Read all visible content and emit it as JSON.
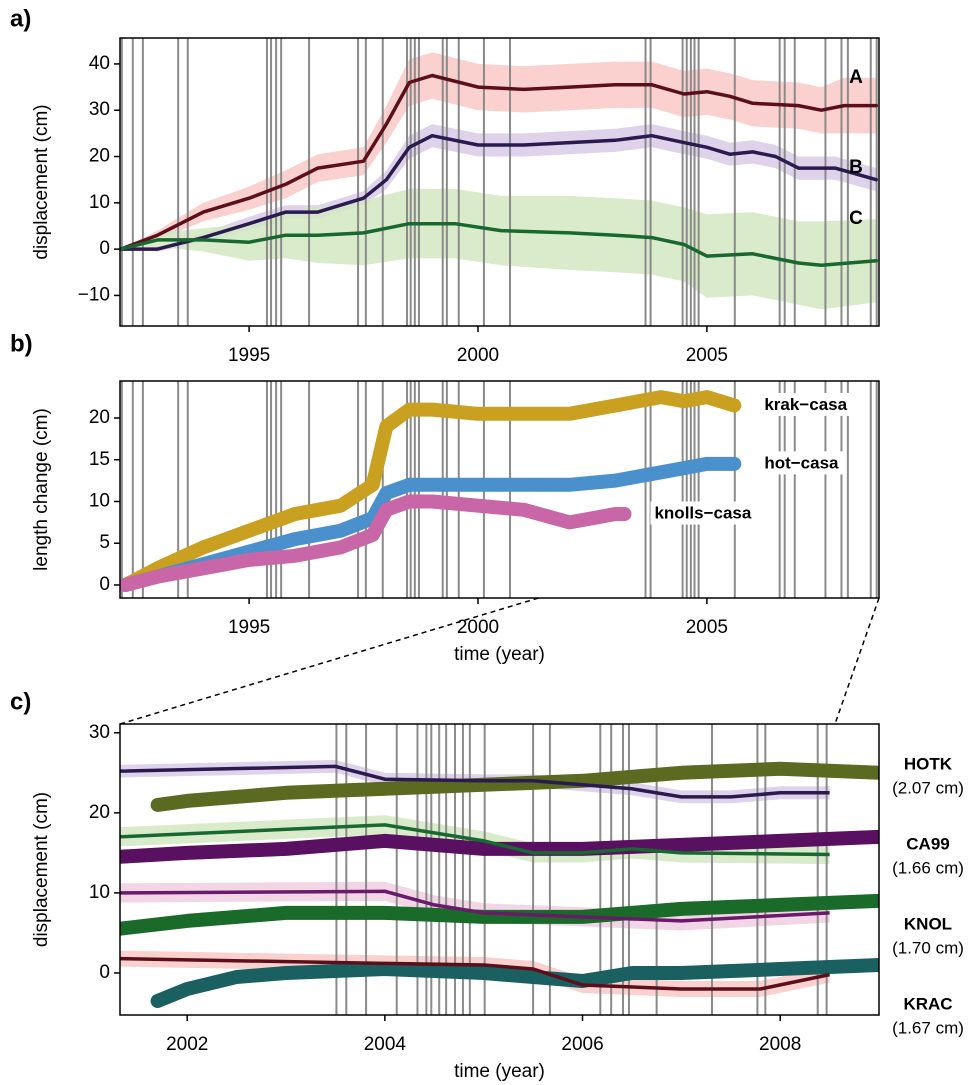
{
  "chart_data": [
    {
      "type": "line",
      "panel": "a)",
      "ylabel": "displacement (cm)",
      "xlim": [
        1992.18,
        2008.76
      ],
      "ylim": [
        -16.6,
        45.6
      ],
      "xticks": [
        1995,
        2000,
        2005
      ],
      "yticks": [
        {
          "value": -10,
          "label": "−10"
        },
        0,
        10,
        20,
        30,
        40
      ],
      "vlines": [
        1992.22,
        1992.46,
        1992.68,
        1993.45,
        1993.66,
        1995.39,
        1995.48,
        1995.59,
        1995.7,
        1996.31,
        1997.38,
        1997.55,
        1997.92,
        1998.45,
        1998.53,
        1998.62,
        1998.71,
        1999.23,
        1999.32,
        1999.58,
        2000.13,
        2000.7,
        2003.66,
        2003.77,
        2004.47,
        2004.56,
        2004.65,
        2004.73,
        2004.82,
        2005.61,
        2006.59,
        2006.7,
        2006.92,
        2007.59,
        2007.94,
        2008.08,
        2008.58,
        2008.71
      ],
      "series": [
        {
          "name": "A",
          "color": "#5c0f1a",
          "band_color": "#f9c9c5",
          "x": [
            1992.2,
            1993,
            1994,
            1995,
            1995.8,
            1996.5,
            1997.5,
            1998,
            1998.5,
            1999,
            2000,
            2001,
            2002,
            2003,
            2003.8,
            2004.5,
            2005,
            2005.5,
            2006,
            2007,
            2007.5,
            2008,
            2008.7
          ],
          "values": [
            0,
            3,
            8,
            11,
            14,
            17.5,
            19,
            27,
            36,
            37.5,
            35,
            34.5,
            35,
            35.5,
            35.5,
            33.5,
            34,
            33,
            31.5,
            31,
            30,
            31,
            31
          ],
          "errors": [
            0,
            1,
            2,
            2.5,
            3,
            3,
            3,
            4,
            5,
            5,
            5,
            5,
            5,
            5,
            5,
            5,
            5,
            5,
            5,
            5,
            5,
            6,
            6
          ]
        },
        {
          "name": "B",
          "color": "#2b1a4f",
          "band_color": "#d8cbe6",
          "x": [
            1992.2,
            1993,
            1994,
            1995,
            1995.8,
            1996.5,
            1997.5,
            1998,
            1998.5,
            1999,
            2000,
            2001,
            2002,
            2003,
            2003.8,
            2004.5,
            2005,
            2005.5,
            2006,
            2006.5,
            2007,
            2007.8,
            2008.7
          ],
          "values": [
            0,
            0,
            2.5,
            5.5,
            8,
            8,
            11,
            15,
            22,
            24.5,
            22.5,
            22.5,
            23,
            23.5,
            24.5,
            23,
            22,
            20.5,
            21,
            20,
            17.5,
            17.5,
            15
          ],
          "errors": [
            0,
            0.5,
            1,
            1.5,
            1.5,
            1.5,
            1.5,
            2,
            2.5,
            2.5,
            2.5,
            2.5,
            2.5,
            2.5,
            2.5,
            2.5,
            2.5,
            2.5,
            2.5,
            2.5,
            2.5,
            2.5,
            2.5
          ]
        },
        {
          "name": "C",
          "color": "#17692f",
          "band_color": "#d3e8c3",
          "x": [
            1992.2,
            1993,
            1994,
            1995,
            1995.8,
            1996.5,
            1997.5,
            1998.5,
            1999.5,
            2000.5,
            2002,
            2003,
            2003.8,
            2004.5,
            2005,
            2006,
            2007,
            2007.5,
            2008.7
          ],
          "values": [
            0,
            2,
            2,
            1.5,
            3,
            3,
            3.5,
            5.5,
            5.5,
            4,
            3.5,
            3,
            2.5,
            1,
            -1.5,
            -1,
            -3,
            -3.5,
            -2.5
          ],
          "errors": [
            0,
            1.5,
            2.5,
            4,
            5,
            6,
            7,
            7.5,
            7.5,
            7.5,
            8,
            8,
            8,
            8,
            9,
            9,
            9,
            9.5,
            9
          ]
        }
      ]
    },
    {
      "type": "dots",
      "panel": "b)",
      "ylabel": "length change (cm)",
      "xlabel": "time (year)",
      "xlim": [
        1992.18,
        2008.76
      ],
      "ylim": [
        -1.56,
        24.43
      ],
      "xticks": [
        1995,
        2000,
        2005
      ],
      "yticks": [
        0,
        5,
        10,
        15,
        20
      ],
      "vlines": [
        1992.22,
        1992.46,
        1992.68,
        1993.45,
        1993.66,
        1995.39,
        1995.48,
        1995.59,
        1995.7,
        1996.31,
        1997.38,
        1997.55,
        1997.92,
        1998.45,
        1998.53,
        1998.62,
        1998.71,
        1999.23,
        1999.32,
        1999.58,
        2000.13,
        2000.7,
        2003.66,
        2003.77,
        2004.47,
        2004.56,
        2004.65,
        2004.73,
        2004.82,
        2005.61,
        2006.59,
        2006.7,
        2006.92,
        2007.59,
        2007.94,
        2008.08,
        2008.58,
        2008.71
      ],
      "series": [
        {
          "name": "krak−casa",
          "color": "#c9a020",
          "x": [
            1992.3,
            1993,
            1994,
            1995,
            1996,
            1997,
            1997.7,
            1998,
            1998.5,
            1999,
            2000,
            2001,
            2002,
            2003,
            2003.5,
            2004,
            2004.5,
            2005,
            2005.6
          ],
          "values": [
            0,
            2,
            4.5,
            6.5,
            8.5,
            9.5,
            12,
            19,
            21,
            21,
            20.5,
            20.5,
            20.5,
            21.5,
            22,
            22.5,
            22,
            22.5,
            21.5
          ]
        },
        {
          "name": "hot−casa",
          "color": "#4a90cc",
          "x": [
            1992.3,
            1993,
            1994,
            1995,
            1996,
            1997,
            1997.7,
            1998,
            1998.5,
            1999,
            2000,
            2001,
            2002,
            2003,
            2004,
            2005,
            2005.6
          ],
          "values": [
            0,
            1,
            2.5,
            4,
            5.5,
            6.5,
            8,
            11,
            12,
            12,
            12,
            12,
            12,
            12.5,
            13.5,
            14.5,
            14.5
          ]
        },
        {
          "name": "knolls−casa",
          "color": "#c866a8",
          "x": [
            1992.3,
            1993,
            1994,
            1995,
            1996,
            1997,
            1997.7,
            1998,
            1998.5,
            1999,
            2000,
            2001,
            2002,
            2002.5,
            2003,
            2003.2
          ],
          "values": [
            0,
            1,
            2,
            3,
            3.5,
            4.5,
            6,
            9,
            10,
            10,
            9.5,
            9,
            7.5,
            8,
            8.5,
            8.5
          ]
        }
      ]
    },
    {
      "type": "dots",
      "panel": "c)",
      "ylabel": "displacement (cm)",
      "xlabel": "time (year)",
      "xlim": [
        2001.32,
        2009.0
      ],
      "ylim": [
        -5.25,
        31.1
      ],
      "xticks": [
        2002,
        2004,
        2006,
        2008
      ],
      "yticks": [
        0,
        10,
        20,
        30
      ],
      "vlines": [
        2003.51,
        2003.61,
        2003.81,
        2004.12,
        2004.33,
        2004.42,
        2004.47,
        2004.55,
        2004.62,
        2004.71,
        2004.79,
        2004.86,
        2005.01,
        2005.5,
        2005.67,
        2006.18,
        2006.29,
        2006.41,
        2006.47,
        2006.75,
        2007.31,
        2007.77,
        2007.85,
        2008.38,
        2008.47
      ],
      "series": [
        {
          "name": "HOTK",
          "note": "(2.07 cm)",
          "color": "#5a6a20",
          "x": [
            2001.7,
            2002,
            2003,
            2004,
            2005,
            2006,
            2007,
            2008,
            2009
          ],
          "values": [
            21,
            21.5,
            22.5,
            23,
            23.5,
            24,
            25,
            25.5,
            25
          ]
        },
        {
          "name": "CA99",
          "note": "(1.66 cm)",
          "color": "#5a1060",
          "x": [
            2001.3,
            2002,
            2003,
            2004,
            2005,
            2006,
            2007,
            2008,
            2009
          ],
          "values": [
            14.5,
            15,
            15.5,
            16.5,
            15.5,
            15.5,
            16,
            16.5,
            17
          ]
        },
        {
          "name": "KNOL",
          "note": "(1.70 cm)",
          "color": "#1a6a2a",
          "x": [
            2001.3,
            2002,
            2003,
            2004,
            2005,
            2006,
            2007,
            2008,
            2009
          ],
          "values": [
            5.5,
            6.5,
            7.5,
            7.5,
            7,
            7,
            8,
            8.5,
            9
          ]
        },
        {
          "name": "KRAC",
          "note": "(1.67 cm)",
          "color": "#1a6060",
          "x": [
            2001.7,
            2002,
            2002.5,
            2003,
            2004,
            2005,
            2006,
            2006.5,
            2007,
            2008,
            2009
          ],
          "values": [
            -3.5,
            -2,
            -0.5,
            0,
            0.5,
            0,
            -1,
            0,
            0,
            0.5,
            1
          ]
        }
      ],
      "models": [
        {
          "color": "#2b1a4f",
          "band_color": "#d8cbe6",
          "x": [
            2001.3,
            2003.5,
            2004,
            2005,
            2005.5,
            2006.5,
            2007,
            2007.5,
            2008,
            2008.5
          ],
          "values": [
            25.2,
            25.8,
            24.2,
            24,
            24,
            23,
            22,
            22,
            22.5,
            22.5
          ],
          "errors": [
            0.8,
            0.8,
            0.8,
            0.8,
            0.8,
            0.8,
            0.8,
            0.8,
            0.8,
            0.8
          ]
        },
        {
          "color": "#17692f",
          "band_color": "#d3e8c3",
          "x": [
            2001.3,
            2004,
            2005,
            2005.5,
            2006,
            2006.5,
            2007,
            2008.5
          ],
          "values": [
            17,
            18.5,
            16.5,
            15,
            15,
            15.5,
            15,
            14.8
          ],
          "errors": [
            1.2,
            1.2,
            1.2,
            1.2,
            1.2,
            1.2,
            1.2,
            1.2
          ]
        },
        {
          "color": "#6a1a6a",
          "band_color": "#f0cfe0",
          "x": [
            2001.3,
            2004,
            2004.5,
            2005,
            2006,
            2007,
            2008.5
          ],
          "values": [
            10,
            10.2,
            8.5,
            7.5,
            7,
            6.5,
            7.5
          ],
          "errors": [
            1.2,
            1.2,
            1.2,
            1.2,
            1.2,
            1.2,
            1.2
          ]
        },
        {
          "color": "#5c0f1a",
          "band_color": "#f9c9c5",
          "x": [
            2001.3,
            2004,
            2005,
            2005.5,
            2006,
            2007,
            2007.8,
            2008.5
          ],
          "values": [
            1.8,
            1.2,
            1,
            0.5,
            -1.5,
            -2,
            -2,
            -0.2
          ],
          "errors": [
            1,
            1,
            1,
            1,
            1,
            1,
            1,
            1
          ]
        }
      ]
    }
  ]
}
